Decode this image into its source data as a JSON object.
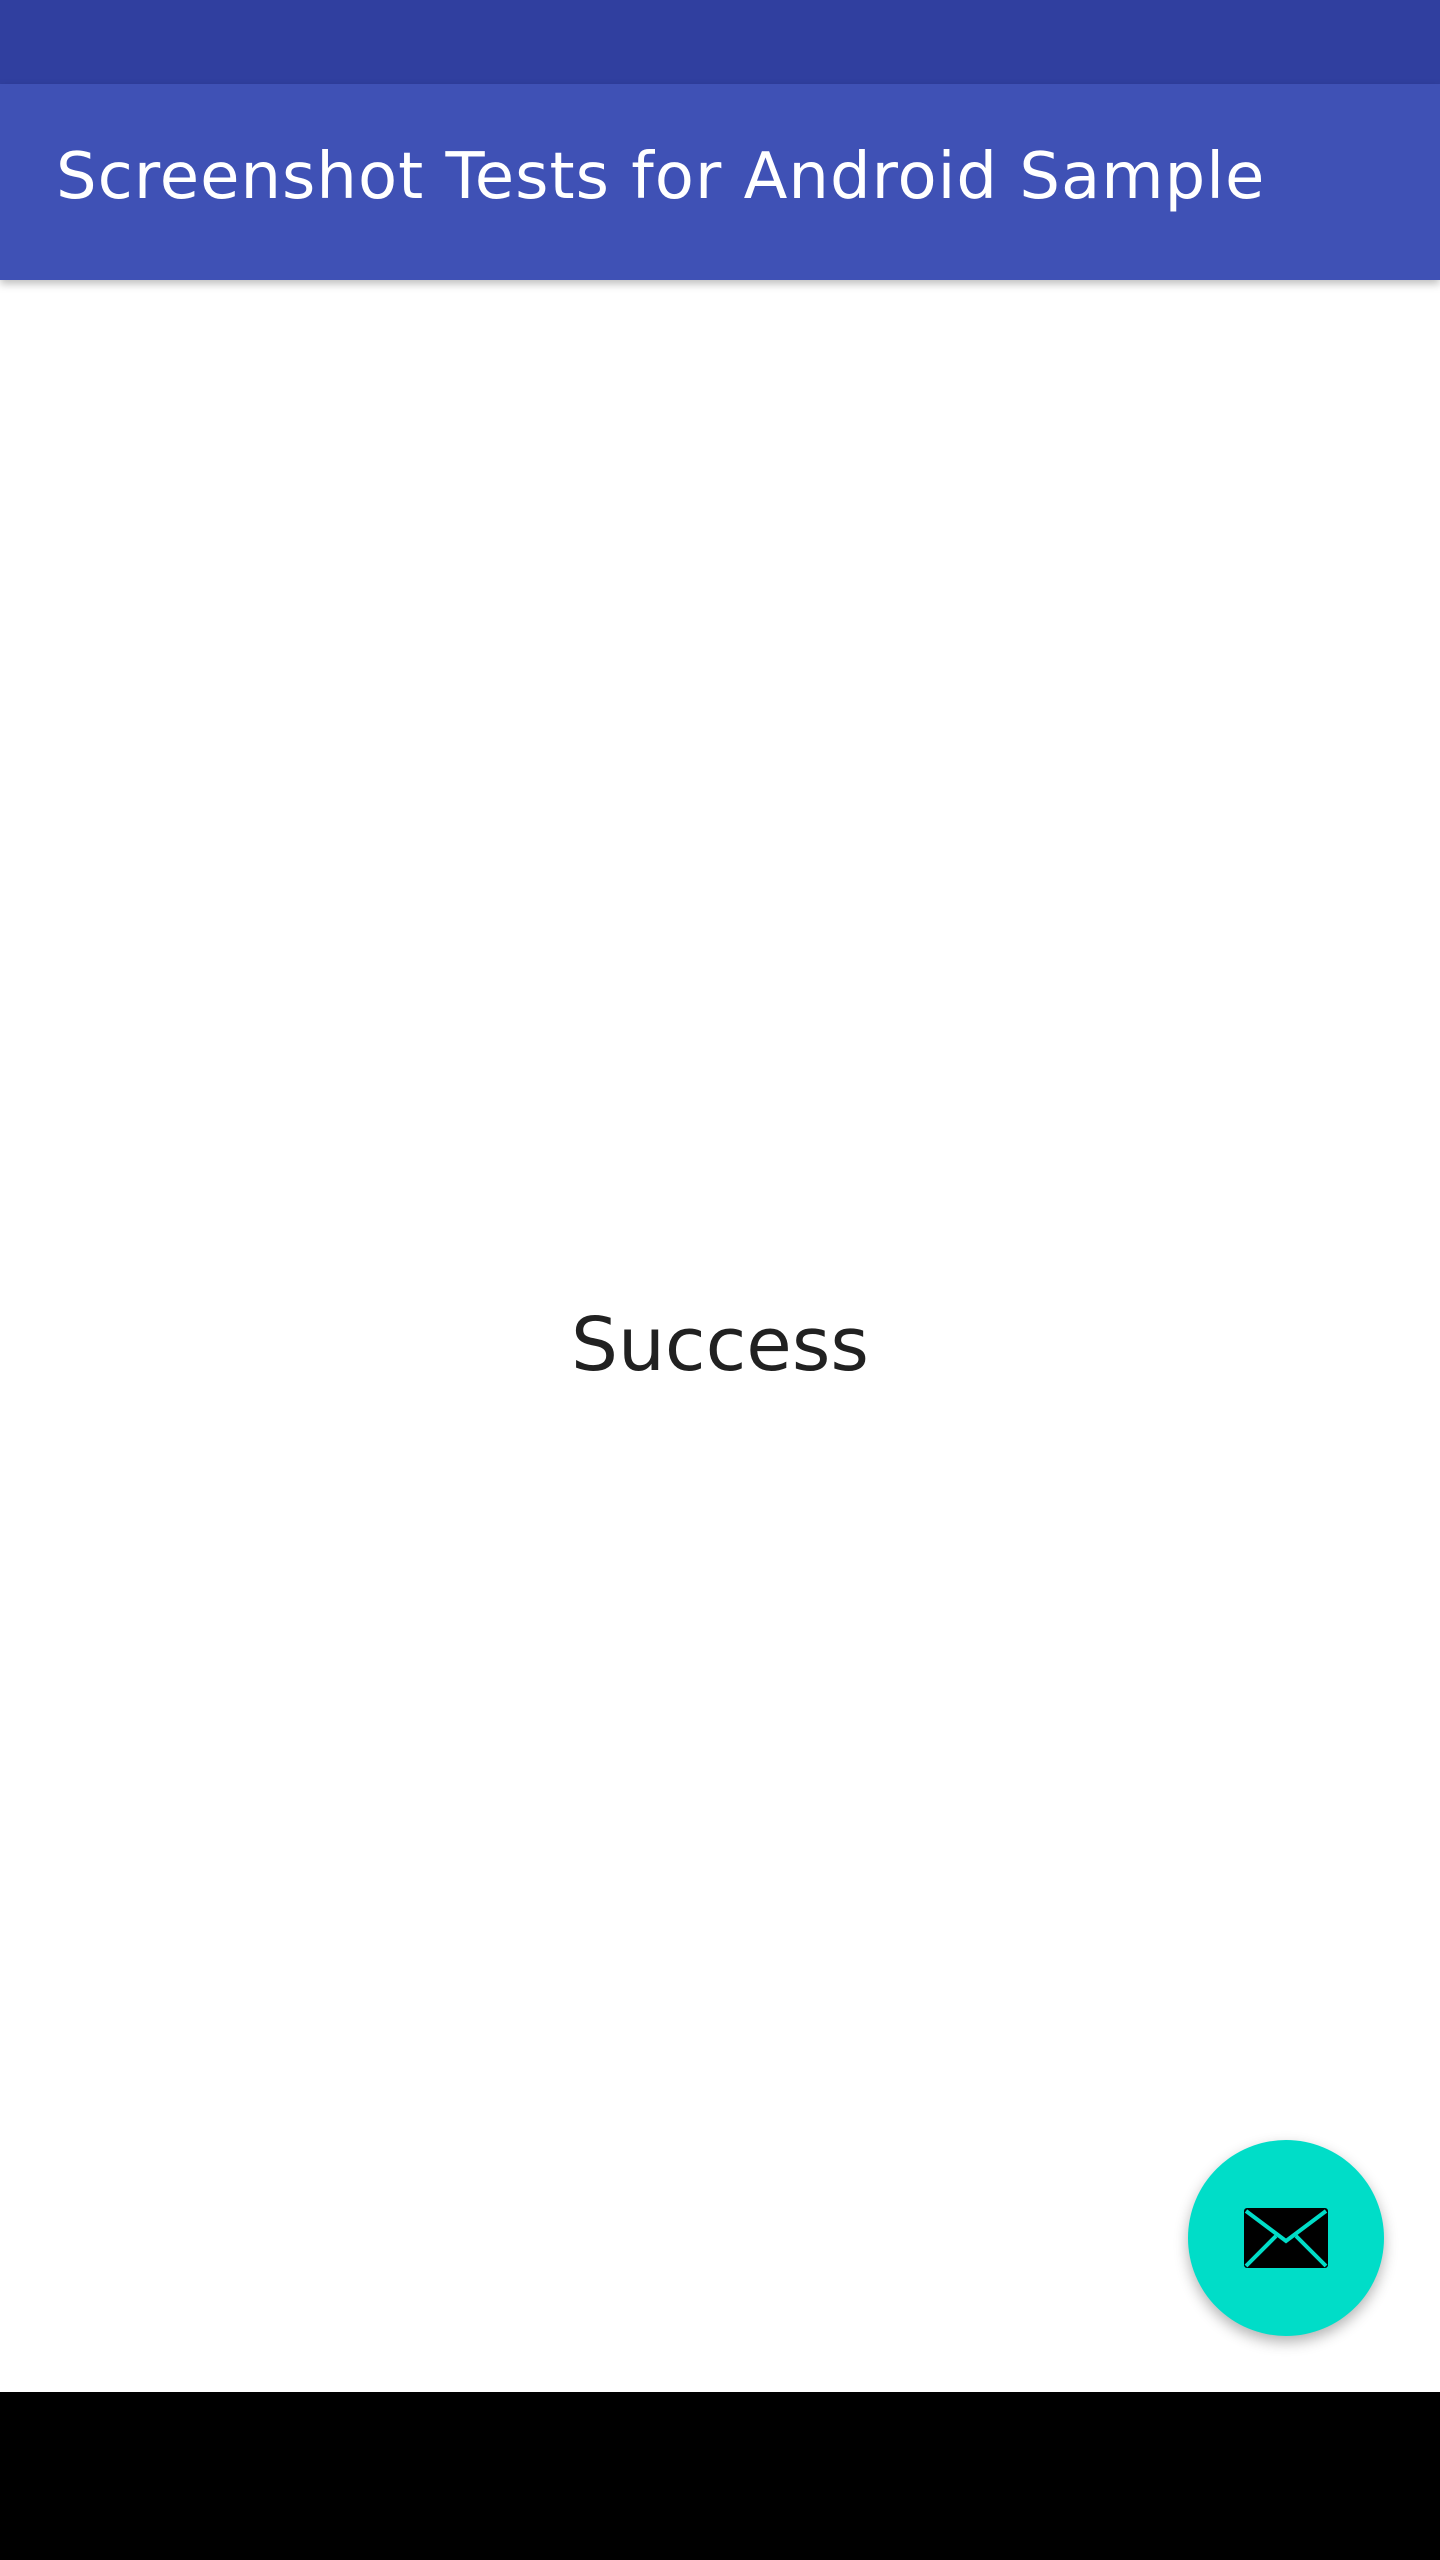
{
  "app_bar": {
    "title": "Screenshot Tests for Android Sample"
  },
  "main": {
    "message": "Success"
  },
  "fab": {
    "icon": "mail-icon"
  },
  "colors": {
    "status_bar": "#303F9F",
    "primary": "#3F51B5",
    "accent": "#00DDC8",
    "background": "#FFFFFF",
    "text_primary": "#212121",
    "nav_bar": "#000000"
  }
}
